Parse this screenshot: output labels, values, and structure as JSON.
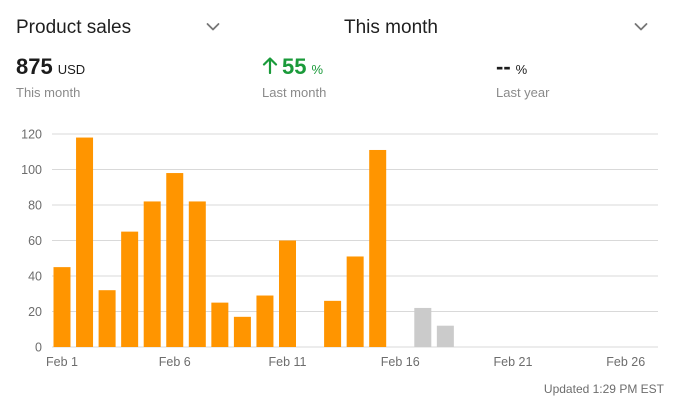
{
  "header": {
    "metric_dropdown": {
      "label": "Product sales",
      "icon": "chevron-down-icon"
    },
    "period_dropdown": {
      "label": "This month",
      "icon": "chevron-down-icon"
    }
  },
  "stats": [
    {
      "value": "875",
      "unit": "USD",
      "label": "This month"
    },
    {
      "value": "55",
      "unit": "%",
      "label": "Last month",
      "trend": "up",
      "color": "#1a9a3a"
    },
    {
      "value": "--",
      "unit": "%",
      "label": "Last year"
    }
  ],
  "footer": {
    "updated": "Updated 1:29 PM EST"
  },
  "colors": {
    "bar_current": "#FF9500",
    "bar_future": "#CBCBCB",
    "grid": "#D9D9D9",
    "up": "#1a9a3a"
  },
  "chart_data": {
    "type": "bar",
    "ylim": [
      0,
      120
    ],
    "yticks": [
      0,
      20,
      40,
      60,
      80,
      100,
      120
    ],
    "xticks": [
      {
        "day": 1,
        "label": "Feb 1"
      },
      {
        "day": 6,
        "label": "Feb 6"
      },
      {
        "day": 11,
        "label": "Feb 11"
      },
      {
        "day": 16,
        "label": "Feb 16"
      },
      {
        "day": 21,
        "label": "Feb 21"
      },
      {
        "day": 26,
        "label": "Feb 26"
      }
    ],
    "days": [
      1,
      2,
      3,
      4,
      5,
      6,
      7,
      8,
      9,
      10,
      11,
      12,
      13,
      14,
      15,
      16,
      17,
      18,
      19,
      20,
      21,
      22,
      23,
      24,
      25,
      26,
      27,
      28
    ],
    "values": [
      45,
      118,
      32,
      65,
      82,
      98,
      82,
      25,
      17,
      29,
      60,
      0,
      26,
      51,
      111,
      0,
      22,
      12,
      0,
      0,
      0,
      0,
      0,
      0,
      0,
      0,
      0,
      0
    ],
    "status": [
      "current",
      "current",
      "current",
      "current",
      "current",
      "current",
      "current",
      "current",
      "current",
      "current",
      "current",
      "current",
      "current",
      "current",
      "current",
      "current",
      "future",
      "future",
      "future",
      "future",
      "future",
      "future",
      "future",
      "future",
      "future",
      "future",
      "future",
      "future"
    ]
  }
}
